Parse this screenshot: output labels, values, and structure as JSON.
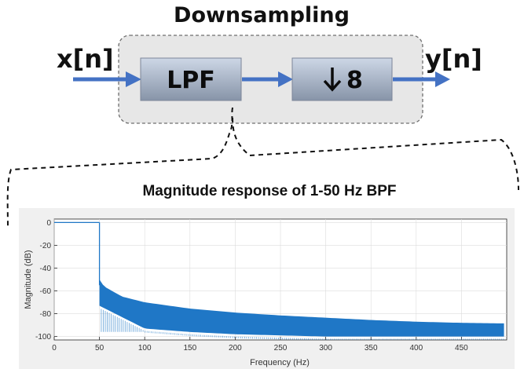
{
  "diagram": {
    "title": "Downsampling",
    "input_label": "x[n]",
    "output_label": "y[n]",
    "blocks": [
      {
        "label": "LPF"
      },
      {
        "label": "8",
        "symbol": "down-arrow"
      }
    ]
  },
  "colors": {
    "arrow": "#4472C4",
    "response": "#1F77C6",
    "block_top": "#cdd7e6",
    "block_bottom": "#8794a8",
    "group_fill": "#e7e7e7",
    "plot_bg": "#f0f0f0"
  },
  "chart_data": {
    "type": "line",
    "title": "Magnitude response of 1-50 Hz BPF",
    "xlabel": "Frequency (Hz)",
    "ylabel": "Magnitude (dB)",
    "xlim": [
      0,
      500
    ],
    "ylim": [
      -103,
      3
    ],
    "xticks": [
      0,
      50,
      100,
      150,
      200,
      250,
      300,
      350,
      400,
      450
    ],
    "yticks": [
      0,
      -20,
      -40,
      -60,
      -80,
      -100
    ],
    "grid": true,
    "series": [
      {
        "passband": {
          "x": [
            0,
            50
          ],
          "y": [
            0,
            0
          ]
        },
        "cutoff_drop": {
          "x": 50,
          "y_from": 0,
          "y_to": -55
        },
        "stopband_upper_envelope": {
          "x": [
            50,
            55,
            75,
            100,
            150,
            200,
            250,
            300,
            350,
            400,
            450,
            497
          ],
          "y": [
            -50,
            -56,
            -65,
            -70,
            -75.5,
            -79,
            -81.5,
            -83.5,
            -85.5,
            -87,
            -88,
            -88.5
          ]
        },
        "stopband_lower_envelope": {
          "x": [
            50,
            100,
            150,
            200,
            300,
            400,
            497
          ],
          "y": [
            -75,
            -95,
            -98,
            -100,
            -102,
            -102,
            -102
          ]
        }
      }
    ]
  }
}
